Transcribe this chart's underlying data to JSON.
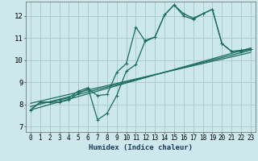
{
  "xlabel": "Humidex (Indice chaleur)",
  "background_color": "#cce8ec",
  "grid_color": "#aacccc",
  "line_color": "#1a6b60",
  "xlim": [
    -0.5,
    23.5
  ],
  "ylim": [
    6.75,
    12.65
  ],
  "xticks": [
    0,
    1,
    2,
    3,
    4,
    5,
    6,
    7,
    8,
    9,
    10,
    11,
    12,
    13,
    14,
    15,
    16,
    17,
    18,
    19,
    20,
    21,
    22,
    23
  ],
  "yticks": [
    7,
    8,
    9,
    10,
    11,
    12
  ],
  "line1_x": [
    0,
    1,
    2,
    3,
    4,
    5,
    6,
    7,
    8,
    9,
    10,
    11,
    12,
    13,
    14,
    15,
    16,
    17,
    18,
    19,
    20,
    21,
    22,
    23
  ],
  "line1_y": [
    7.75,
    8.1,
    8.1,
    8.1,
    8.2,
    8.5,
    8.7,
    8.4,
    8.45,
    9.45,
    9.85,
    11.5,
    10.85,
    11.05,
    12.05,
    12.5,
    12.0,
    11.85,
    12.1,
    12.3,
    10.75,
    10.4,
    10.4,
    10.5
  ],
  "line2_x": [
    0,
    1,
    2,
    3,
    4,
    5,
    6,
    7,
    8,
    9,
    10,
    11,
    12,
    13,
    14,
    15,
    16,
    17,
    18,
    19,
    20,
    21,
    22,
    23
  ],
  "line2_y": [
    7.75,
    8.1,
    8.1,
    8.2,
    8.3,
    8.6,
    8.75,
    7.3,
    7.6,
    8.4,
    9.5,
    9.8,
    10.9,
    11.05,
    12.05,
    12.5,
    12.1,
    11.9,
    12.1,
    12.3,
    10.75,
    10.4,
    10.45,
    10.5
  ],
  "line3_x": [
    0,
    23
  ],
  "line3_y": [
    7.9,
    10.45
  ],
  "line4_x": [
    0,
    23
  ],
  "line4_y": [
    8.05,
    10.35
  ],
  "line5_x": [
    0,
    23
  ],
  "line5_y": [
    7.75,
    10.55
  ]
}
